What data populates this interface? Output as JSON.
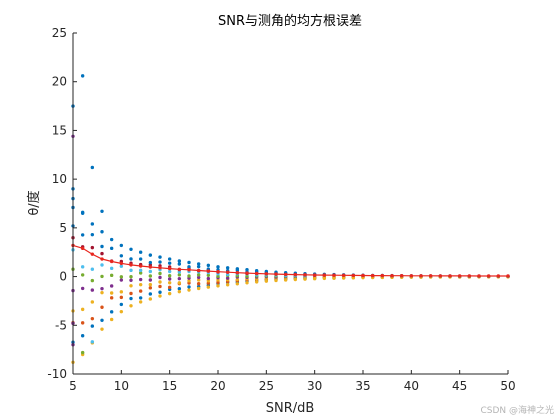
{
  "chart_data": {
    "type": "scatter",
    "title": "SNR与测角的均方根误差",
    "xlabel": "SNR/dB",
    "ylabel": "θ/度",
    "xlim": [
      5,
      50
    ],
    "ylim": [
      -10,
      25
    ],
    "xticks": [
      5,
      10,
      15,
      20,
      25,
      30,
      35,
      40,
      45,
      50
    ],
    "yticks": [
      -10,
      -5,
      0,
      5,
      10,
      15,
      20,
      25
    ],
    "grid": false,
    "legend": "none",
    "snr": [
      5,
      6,
      7,
      8,
      9,
      10,
      11,
      12,
      13,
      14,
      15,
      16,
      17,
      18,
      19,
      20,
      21,
      22,
      23,
      24,
      25,
      26,
      27,
      28,
      29,
      30,
      31,
      32,
      33,
      34,
      35,
      36,
      37,
      38,
      39,
      40,
      41,
      42,
      43,
      44,
      45,
      46,
      47,
      48,
      49,
      50
    ],
    "rmse_line": {
      "color": "#e8271f",
      "values": [
        3.2,
        2.9,
        2.3,
        1.8,
        1.55,
        1.35,
        1.2,
        1.08,
        0.98,
        0.9,
        0.82,
        0.75,
        0.7,
        0.62,
        0.56,
        0.5,
        0.45,
        0.4,
        0.36,
        0.32,
        0.28,
        0.25,
        0.22,
        0.2,
        0.18,
        0.16,
        0.15,
        0.14,
        0.13,
        0.12,
        0.11,
        0.1,
        0.1,
        0.09,
        0.09,
        0.08,
        0.08,
        0.08,
        0.07,
        0.07,
        0.07,
        0.07,
        0.06,
        0.06,
        0.06,
        0.06
      ]
    },
    "lower_bound": {
      "color": "#edb120",
      "values": [
        -8.8,
        -8.0,
        -6.8,
        -5.4,
        -4.4,
        -3.6,
        -3.0,
        -2.6,
        -2.3,
        -2.0,
        -1.75,
        -1.55,
        -1.38,
        -1.22,
        -1.08,
        -0.95,
        -0.84,
        -0.74,
        -0.64,
        -0.55,
        -0.47,
        -0.4,
        -0.35,
        -0.3,
        -0.26,
        -0.22,
        -0.19,
        -0.17,
        -0.15,
        -0.13,
        -0.11,
        -0.1,
        -0.09,
        -0.08,
        -0.07,
        -0.06,
        -0.06,
        -0.05,
        -0.05,
        -0.04,
        -0.04,
        -0.04,
        -0.03,
        -0.03,
        -0.03,
        -0.03
      ]
    },
    "upper_bound": {
      "color": "#0072bd",
      "values": [
        9.0,
        6.5,
        5.4,
        4.6,
        3.8,
        3.2,
        2.8,
        2.5,
        2.2,
        2.0,
        1.8,
        1.6,
        1.45,
        1.3,
        1.15,
        1.0,
        0.9,
        0.8,
        0.7,
        0.6,
        0.52,
        0.45,
        0.4,
        0.35,
        0.3,
        0.26,
        0.23,
        0.2,
        0.18,
        0.16,
        0.14,
        0.12,
        0.11,
        0.1,
        0.09,
        0.08,
        0.08,
        0.07,
        0.06,
        0.06,
        0.05,
        0.05,
        0.05,
        0.04,
        0.04,
        0.04
      ]
    },
    "outliers": [
      {
        "x": 5,
        "y": 17.5,
        "color": "#0072bd"
      },
      {
        "x": 6,
        "y": 20.6,
        "color": "#0072bd"
      },
      {
        "x": 5,
        "y": 14.4,
        "color": "#7e2f8e"
      },
      {
        "x": 7,
        "y": 11.2,
        "color": "#0072bd"
      },
      {
        "x": 5,
        "y": 8.0,
        "color": "#0072bd"
      },
      {
        "x": 8,
        "y": 6.7,
        "color": "#0072bd"
      },
      {
        "x": 5,
        "y": 5.2,
        "color": "#0072bd"
      },
      {
        "x": 6,
        "y": 6.6,
        "color": "#0072bd"
      },
      {
        "x": 5,
        "y": -4.8,
        "color": "#7e2f8e"
      },
      {
        "x": 5,
        "y": -7.0,
        "color": "#7e2f8e"
      },
      {
        "x": 7,
        "y": -6.7,
        "color": "#4dbeee"
      },
      {
        "x": 6,
        "y": -7.8,
        "color": "#77ac30"
      }
    ],
    "series_colors": [
      "#0072bd",
      "#d95319",
      "#edb120",
      "#7e2f8e",
      "#77ac30",
      "#4dbeee",
      "#a2142f"
    ]
  },
  "watermark": "CSDN @海神之光"
}
